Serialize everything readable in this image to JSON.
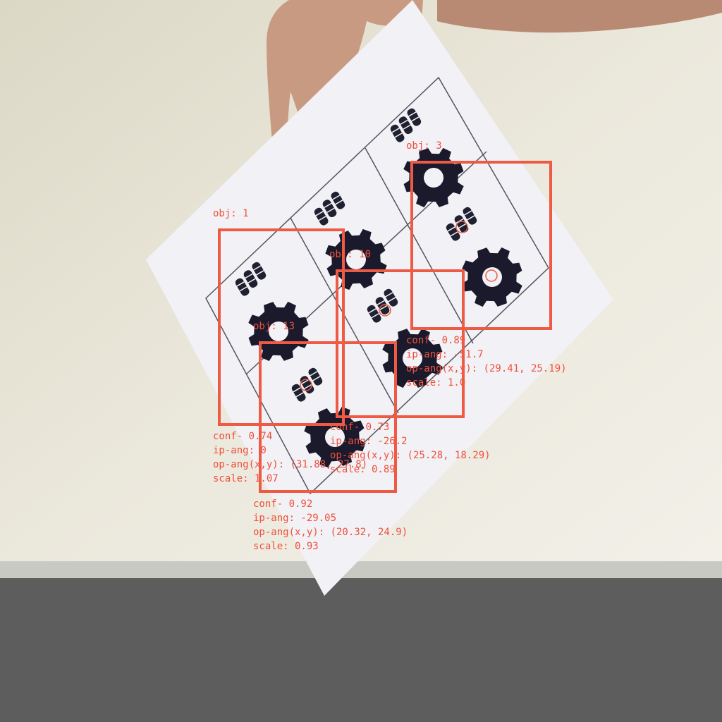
{
  "detections": [
    {
      "label": "obj: 1",
      "info": [
        "conf- 0.74",
        "ip-ang: 0",
        "op-ang(x,y): (31.88, 27.8)",
        "scale: 1.07"
      ]
    },
    {
      "label": "obj: 3",
      "info": [
        "conf- 0.89",
        "ip-ang: -51.7",
        "op-ang(x,y): (29.41, 25.19)",
        "scale: 1.0"
      ]
    },
    {
      "label": "obj: 10",
      "info": [
        "conf- 0.73",
        "ip-ang: -26.2",
        "op-ang(x,y): (25.28, 18.29)",
        "scale: 0.89"
      ]
    },
    {
      "label": "obj: 13",
      "info": [
        "conf- 0.92",
        "ip-ang: -29.05",
        "op-ang(x,y): (20.32, 24.9)",
        "scale: 0.93"
      ]
    }
  ],
  "colors": {
    "overlay": "#ef5a45",
    "wall": "#e8e5d9",
    "floor": "#5d5d5d",
    "paper": "#f1f1f6",
    "gear": "#1a1a2c"
  }
}
